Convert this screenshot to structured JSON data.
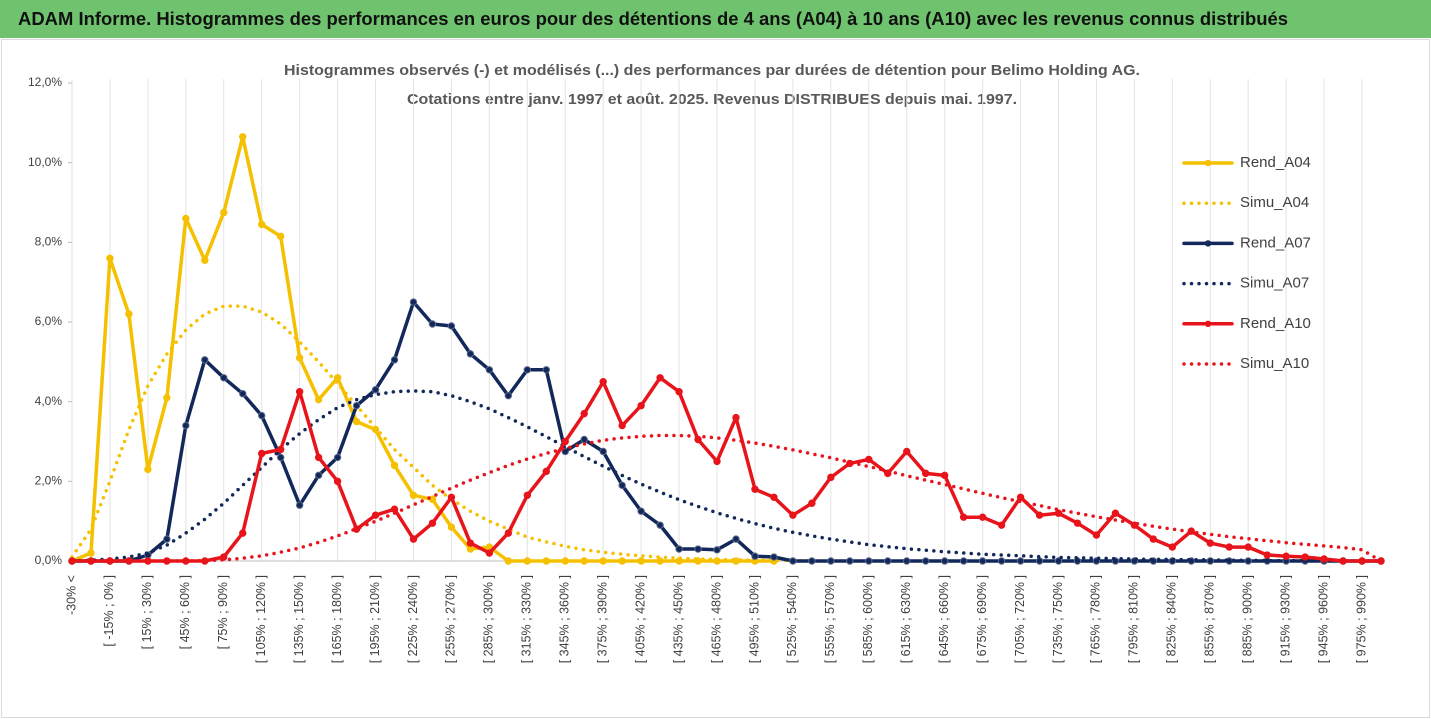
{
  "chart_data": {
    "type": "line",
    "page_title": "ADAM Informe. Histogrammes des performances en euros pour des détentions de 4 ans (A04) à 10 ans (A10) avec les revenus connus distribués",
    "title": "Histogrammes observés (-) et modélisés (...) des performances par durées de détention pour Belimo Holding AG.",
    "subtitle": "Cotations entre janv. 1997 et août. 2025. Revenus DISTRIBUES depuis mai. 1997.",
    "categories": [
      "-30% <",
      null,
      "[ -15% ; 0% ]",
      null,
      "[ 15% ; 30% ]",
      null,
      "[ 45% ; 60% ]",
      null,
      "[ 75% ; 90% ]",
      null,
      "[ 105% ; 120% ]",
      null,
      "[ 135% ; 150% ]",
      null,
      "[ 165% ; 180% ]",
      null,
      "[ 195% ; 210% ]",
      null,
      "[ 225% ; 240% ]",
      null,
      "[ 255% ; 270% ]",
      null,
      "[ 285% ; 300% ]",
      null,
      "[ 315% ; 330% ]",
      null,
      "[ 345% ; 360% ]",
      null,
      "[ 375% ; 390% ]",
      null,
      "[ 405% ; 420% ]",
      null,
      "[ 435% ; 450% ]",
      null,
      "[ 465% ; 480% ]",
      null,
      "[ 495% ; 510% ]",
      null,
      "[ 525% ; 540% ]",
      null,
      "[ 555% ; 570% ]",
      null,
      "[ 585% ; 600% ]",
      null,
      "[ 615% ; 630% ]",
      null,
      "[ 645% ; 660% ]",
      null,
      "[ 675% ; 690% ]",
      null,
      "[ 705% ; 720% ]",
      null,
      "[ 735% ; 750% ]",
      null,
      "[ 765% ; 780% ]",
      null,
      "[ 795% ; 810% ]",
      null,
      "[ 825% ; 840% ]",
      null,
      "[ 855% ; 870% ]",
      null,
      "[ 885% ; 900% ]",
      null,
      "[ 915% ; 930% ]",
      null,
      "[ 945% ; 960% ]",
      null,
      "[ 975% ; 990% ]",
      null
    ],
    "series": [
      {
        "name": "Rend_A04",
        "color": "#f5c000",
        "dash": "solid",
        "markers": true,
        "values": [
          0,
          0.2,
          7.6,
          6.2,
          2.3,
          4.1,
          8.6,
          7.55,
          8.75,
          10.65,
          8.45,
          8.15,
          5.1,
          4.05,
          4.6,
          3.5,
          3.3,
          2.4,
          1.65,
          1.55,
          0.85,
          0.3,
          0.35,
          0,
          0,
          0,
          0,
          0,
          0,
          0,
          0,
          0,
          0,
          0,
          0,
          0,
          0,
          0,
          null,
          null,
          null,
          null,
          null,
          null,
          null,
          null,
          null,
          null,
          null,
          null,
          null,
          null,
          null,
          null,
          null,
          null,
          null,
          null,
          null,
          null,
          null,
          null,
          null,
          null,
          null,
          null,
          null,
          null,
          null,
          null
        ]
      },
      {
        "name": "Simu_A04",
        "color": "#f5c000",
        "dash": "dotted",
        "markers": false,
        "values": [
          0.1,
          0.8,
          2.0,
          3.3,
          4.4,
          5.2,
          5.8,
          6.2,
          6.4,
          6.4,
          6.25,
          5.95,
          5.5,
          5.0,
          4.45,
          3.9,
          3.35,
          2.8,
          2.35,
          1.9,
          1.55,
          1.25,
          1.0,
          0.8,
          0.6,
          0.48,
          0.37,
          0.28,
          0.22,
          0.17,
          0.13,
          0.1,
          0.07,
          0.05,
          0.04,
          0.03,
          0.02,
          0.015,
          0.01,
          0.01,
          null,
          null,
          null,
          null,
          null,
          null,
          null,
          null,
          null,
          null,
          null,
          null,
          null,
          null,
          null,
          null,
          null,
          null,
          null,
          null,
          null,
          null,
          null,
          null,
          null,
          null,
          null,
          null,
          null,
          null
        ]
      },
      {
        "name": "Rend_A07",
        "color": "#12275a",
        "dash": "solid",
        "markers": true,
        "values": [
          0,
          0,
          0,
          0,
          0.15,
          0.55,
          3.4,
          5.05,
          4.6,
          4.2,
          3.65,
          2.6,
          1.4,
          2.15,
          2.6,
          3.9,
          4.3,
          5.05,
          6.5,
          5.95,
          5.9,
          5.2,
          4.8,
          4.15,
          4.8,
          4.8,
          2.75,
          3.05,
          2.75,
          1.9,
          1.25,
          0.9,
          0.3,
          0.3,
          0.28,
          0.55,
          0.12,
          0.1,
          0,
          0,
          0,
          0,
          0,
          0,
          0,
          0,
          0,
          0,
          0,
          0,
          0,
          0,
          0,
          0,
          0,
          0,
          0,
          0,
          0,
          0,
          0,
          0,
          0,
          0,
          0,
          0,
          0,
          0,
          0,
          0
        ]
      },
      {
        "name": "Simu_A07",
        "color": "#12275a",
        "dash": "dotted",
        "markers": false,
        "values": [
          0,
          0.02,
          0.05,
          0.1,
          0.2,
          0.4,
          0.7,
          1.05,
          1.45,
          1.9,
          2.35,
          2.8,
          3.2,
          3.55,
          3.85,
          4.05,
          4.18,
          4.25,
          4.27,
          4.25,
          4.15,
          4.0,
          3.82,
          3.6,
          3.37,
          3.12,
          2.87,
          2.62,
          2.38,
          2.15,
          1.93,
          1.73,
          1.54,
          1.37,
          1.21,
          1.07,
          0.94,
          0.82,
          0.72,
          0.63,
          0.55,
          0.48,
          0.41,
          0.36,
          0.31,
          0.27,
          0.23,
          0.2,
          0.17,
          0.15,
          0.13,
          0.11,
          0.09,
          0.08,
          0.07,
          0.06,
          0.05,
          0.04,
          0.04,
          0.03,
          0.03,
          0.02,
          0.02,
          0.01,
          0.01,
          0.01,
          0.01,
          0,
          0,
          0
        ]
      },
      {
        "name": "Rend_A10",
        "color": "#e8141b",
        "dash": "solid",
        "markers": true,
        "values": [
          0,
          0,
          0,
          0,
          0,
          0,
          0,
          0,
          0.1,
          0.7,
          2.7,
          2.8,
          4.25,
          2.6,
          2.0,
          0.8,
          1.15,
          1.3,
          0.55,
          0.95,
          1.6,
          0.45,
          0.2,
          0.7,
          1.65,
          2.25,
          3.0,
          3.7,
          4.5,
          3.4,
          3.9,
          4.6,
          4.25,
          3.05,
          2.5,
          3.6,
          1.8,
          1.6,
          1.15,
          1.45,
          2.1,
          2.45,
          2.55,
          2.2,
          2.75,
          2.2,
          2.15,
          1.1,
          1.1,
          0.9,
          1.6,
          1.15,
          1.2,
          0.95,
          0.65,
          1.2,
          0.9,
          0.55,
          0.35,
          0.75,
          0.45,
          0.35,
          0.35,
          0.15,
          0.12,
          0.1,
          0.05,
          0,
          0,
          0
        ]
      },
      {
        "name": "Simu_A10",
        "color": "#e8141b",
        "dash": "dotted",
        "markers": false,
        "values": [
          0,
          0,
          0,
          0,
          0,
          0,
          0,
          0.01,
          0.03,
          0.07,
          0.13,
          0.22,
          0.33,
          0.47,
          0.63,
          0.81,
          1.0,
          1.2,
          1.41,
          1.62,
          1.83,
          2.03,
          2.22,
          2.4,
          2.56,
          2.7,
          2.83,
          2.94,
          3.03,
          3.09,
          3.13,
          3.15,
          3.15,
          3.13,
          3.09,
          3.03,
          2.96,
          2.88,
          2.79,
          2.69,
          2.59,
          2.48,
          2.37,
          2.26,
          2.14,
          2.03,
          1.92,
          1.81,
          1.7,
          1.59,
          1.49,
          1.39,
          1.29,
          1.2,
          1.11,
          1.03,
          0.95,
          0.87,
          0.8,
          0.73,
          0.67,
          0.61,
          0.56,
          0.51,
          0.46,
          0.42,
          0.38,
          0.34,
          0.28,
          0
        ]
      }
    ],
    "ylim": [
      0,
      12
    ],
    "yticks": [
      {
        "value": 0,
        "label": "0,0%"
      },
      {
        "value": 2,
        "label": "2,0%"
      },
      {
        "value": 4,
        "label": "4,0%"
      },
      {
        "value": 6,
        "label": "6,0%"
      },
      {
        "value": 8,
        "label": "8,0%"
      },
      {
        "value": 10,
        "label": "10,0%"
      },
      {
        "value": 12,
        "label": "12,0%"
      }
    ],
    "legend": "right"
  }
}
